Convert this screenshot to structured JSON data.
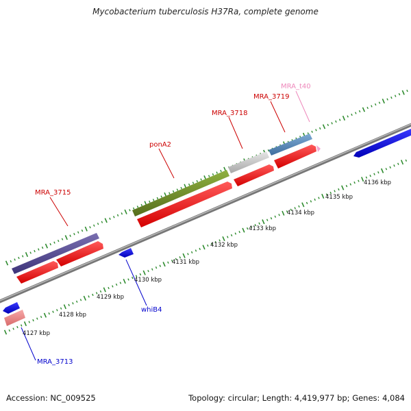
{
  "title": "Mycobacterium tuberculosis H37Ra, complete genome",
  "footer": {
    "accession": "Accession: NC_009525",
    "summary": "Topology: circular; Length: 4,419,977 bp; Genes: 4,084"
  },
  "colors": {
    "backbone": "#8a8a8a",
    "tick": "#2e8b2e",
    "cds": "#ff0000",
    "forward_label": "#cc0000",
    "reverse_label": "#0000cc",
    "trna_label": "#ee88bb"
  },
  "scale_labels": [
    "4127 kbp",
    "4128 kbp",
    "4129 kbp",
    "4130 kbp",
    "4131 kbp",
    "4132 kbp",
    "4133 kbp",
    "4134 kbp",
    "4135 kbp",
    "4136 kbp"
  ],
  "gene_labels": {
    "MRA_3715": "MRA_3715",
    "ponA2": "ponA2",
    "MRA_3718": "MRA_3718",
    "MRA_3719": "MRA_3719",
    "MRA_t40": "MRA_t40",
    "whiB4": "whiB4",
    "MRA_3713": "MRA_3713"
  }
}
